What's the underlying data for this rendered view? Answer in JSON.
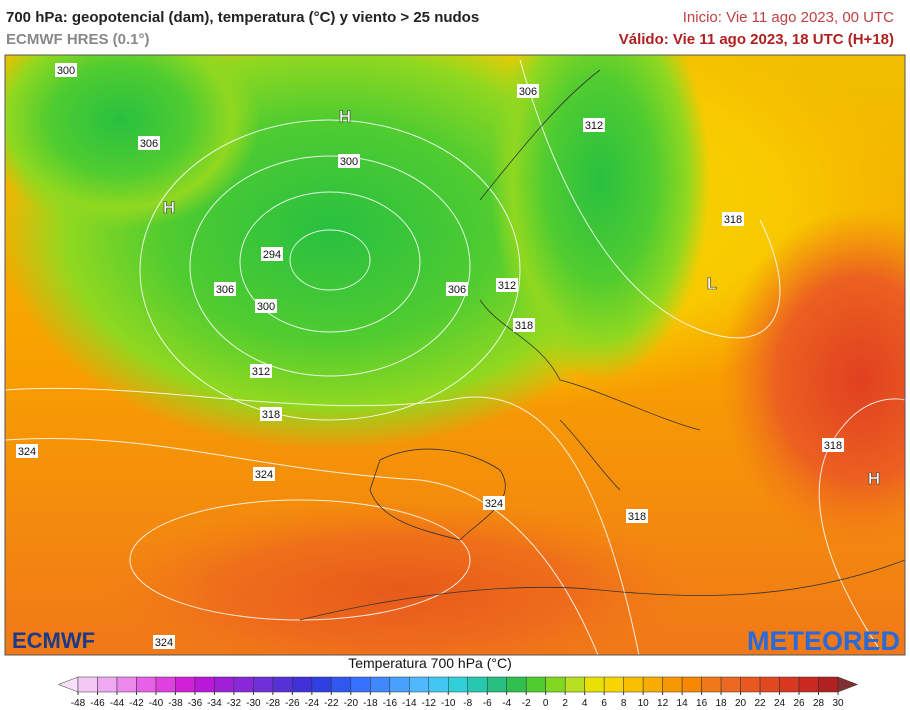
{
  "header": {
    "title": "700 hPa: geopotencial (dam), temperatura (°C) y viento > 25 nudos",
    "subtitle": "ECMWF HRES (0.1°)",
    "start": "Inicio: Vie 11 ago 2023, 00 UTC",
    "valid": "Válido: Vie 11 ago 2023, 18 UTC (H+18)"
  },
  "map": {
    "contour_labels": [
      300,
      306,
      306,
      312,
      300,
      294,
      306,
      300,
      306,
      312,
      318,
      312,
      318,
      318,
      324,
      324,
      324,
      318,
      318,
      324
    ],
    "pressure_centers": [
      "H",
      "H",
      "L",
      "H"
    ],
    "logo_left": "ECMWF",
    "logo_right": "METEORED"
  },
  "colorbar": {
    "title": "Temperatura 700 hPa (°C)",
    "ticks": [
      -48,
      -46,
      -44,
      -42,
      -40,
      -38,
      -36,
      -34,
      -32,
      -30,
      -28,
      -26,
      -24,
      -22,
      -20,
      -18,
      -16,
      -14,
      -12,
      -10,
      -8,
      -6,
      -4,
      -2,
      0,
      2,
      4,
      6,
      8,
      10,
      12,
      14,
      16,
      18,
      20,
      22,
      24,
      26,
      28,
      30
    ],
    "colors": [
      "#f9e0f9",
      "#f4c8f4",
      "#f0a8f0",
      "#ec88ec",
      "#e860e8",
      "#e040e0",
      "#d020d8",
      "#b818d8",
      "#a020d8",
      "#8828d8",
      "#7030d8",
      "#5830d8",
      "#4030d8",
      "#3040e0",
      "#3058f0",
      "#3870ff",
      "#4088ff",
      "#48a0ff",
      "#50b8ff",
      "#40c8f0",
      "#30d0d8",
      "#28c8b0",
      "#28c080",
      "#30c050",
      "#50cc30",
      "#80d820",
      "#b8e020",
      "#e8e000",
      "#f8d400",
      "#f8c000",
      "#f8ac00",
      "#f89800",
      "#f88800",
      "#f07818",
      "#ec6820",
      "#e85820",
      "#e04820",
      "#d83820",
      "#c82820",
      "#b02020",
      "#803030"
    ]
  }
}
